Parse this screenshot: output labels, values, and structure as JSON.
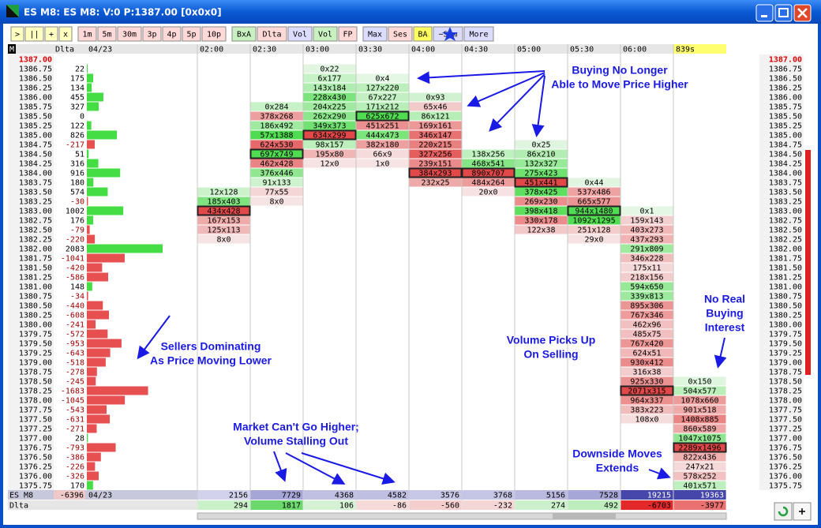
{
  "window_title": "ES M8: ES M8: V:0 P:1387.00 [0x0x0]",
  "toolbar": [
    ">",
    "||",
    "+",
    "x",
    "1m",
    "5m",
    "30m",
    "3p",
    "4p",
    "5p",
    "10p",
    "BxA",
    "Dlta",
    "Vol",
    "Vol",
    "FP",
    "Max",
    "Ses",
    "BA",
    "~Sym",
    "More"
  ],
  "header": {
    "corner": "M",
    "delta": "Dlta",
    "date": "04/23",
    "times": [
      "02:00",
      "02:30",
      "03:00",
      "03:30",
      "04:00",
      "04:30",
      "05:00",
      "05:30",
      "06:00"
    ],
    "current": "839s"
  },
  "prices": [
    "1387.00",
    "1386.75",
    "1386.50",
    "1386.25",
    "1386.00",
    "1385.75",
    "1385.50",
    "1385.25",
    "1385.00",
    "1384.75",
    "1384.50",
    "1384.25",
    "1384.00",
    "1383.75",
    "1383.50",
    "1383.25",
    "1383.00",
    "1382.75",
    "1382.50",
    "1382.25",
    "1382.00",
    "1381.75",
    "1381.50",
    "1381.25",
    "1381.00",
    "1380.75",
    "1380.50",
    "1380.25",
    "1380.00",
    "1379.75",
    "1379.50",
    "1379.25",
    "1379.00",
    "1378.75",
    "1378.50",
    "1378.25",
    "1378.00",
    "1377.75",
    "1377.50",
    "1377.25",
    "1377.00",
    "1376.75",
    "1376.50",
    "1376.25",
    "1376.00",
    "1375.75"
  ],
  "delta": {
    "values": [
      null,
      22,
      175,
      134,
      455,
      327,
      0,
      122,
      826,
      -217,
      51,
      316,
      916,
      180,
      574,
      -30,
      1002,
      176,
      -79,
      -220,
      2083,
      -1041,
      -420,
      -586,
      148,
      -34,
      -440,
      -608,
      -241,
      -572,
      -953,
      -643,
      -518,
      -278,
      -245,
      -1683,
      -1045,
      -543,
      -631,
      -271,
      28,
      -793,
      -386,
      -226,
      -326,
      170
    ]
  },
  "columns": [
    {
      "top_price": "1383.50",
      "cells": [
        "12x128",
        "185x403",
        "434x428",
        "167x153",
        "125x113",
        "8x0"
      ]
    },
    {
      "top_price": "1385.75",
      "cells": [
        "0x284",
        "378x268",
        "186x492",
        "57x1388",
        "624x530",
        "697x749",
        "462x428",
        "376x446",
        "91x133",
        "77x55",
        "8x0"
      ]
    },
    {
      "top_price": "1386.75",
      "cells": [
        "0x22",
        "6x177",
        "143x184",
        "228x430",
        "204x225",
        "262x290",
        "349x373",
        "634x299",
        "98x157",
        "195x80",
        "12x0"
      ]
    },
    {
      "top_price": "1386.50",
      "cells": [
        "0x4",
        "127x220",
        "67x227",
        "171x212",
        "625x672",
        "451x251",
        "444x473",
        "382x180",
        "66x9",
        "1x0"
      ]
    },
    {
      "top_price": "1386.00",
      "cells": [
        "0x93",
        "65x46",
        "86x121",
        "169x161",
        "346x147",
        "220x215",
        "327x256",
        "239x151",
        "384x293",
        "232x25"
      ]
    },
    {
      "top_price": "1384.50",
      "cells": [
        "138x256",
        "468x541",
        "890x707",
        "484x264",
        "20x0"
      ]
    },
    {
      "top_price": "1384.75",
      "cells": [
        "0x25",
        "86x210",
        "132x327",
        "275x423",
        "451x441",
        "378x425",
        "269x230",
        "398x418",
        "330x178",
        "122x38"
      ]
    },
    {
      "top_price": "1383.75",
      "cells": [
        "0x44",
        "537x486",
        "665x577",
        "944x1480",
        "1092x1295",
        "251x128",
        "29x0"
      ]
    },
    {
      "top_price": "1383.00",
      "cells": [
        "0x1",
        "159x143",
        "403x273",
        "437x293",
        "291x809",
        "346x228",
        "175x11",
        "218x156",
        "594x650",
        "339x813",
        "895x306",
        "767x346",
        "462x96",
        "485x75",
        "767x420",
        "624x51",
        "930x412",
        "316x38",
        "925x330",
        "2071x315",
        "964x337",
        "383x223",
        "108x0"
      ]
    },
    {
      "top_price": "1378.50",
      "cells": [
        "0x150",
        "504x577",
        "1078x660",
        "901x518",
        "1408x885",
        "860x589",
        "1047x1075",
        "2289x1496",
        "822x436",
        "247x21",
        "578x252",
        "401x571"
      ]
    }
  ],
  "footer": {
    "symbol": "ES M8",
    "total_delta": -6396,
    "date": "04/23",
    "delta_label": "Dlta",
    "volumes": [
      2156,
      7729,
      4368,
      4582,
      3576,
      3768,
      5156,
      7528,
      19215,
      19363
    ],
    "deltas": [
      294,
      1817,
      106,
      -86,
      -560,
      -232,
      274,
      492,
      -6703,
      -3977
    ]
  },
  "annotations": [
    {
      "lines": [
        "Buying No Longer",
        "Able to Move Price Higher"
      ]
    },
    {
      "lines": [
        "Sellers Dominating",
        "As Price Moving Lower"
      ]
    },
    {
      "lines": [
        "Volume Picks Up",
        "On Selling"
      ]
    },
    {
      "lines": [
        "No Real",
        "Buying",
        "Interest"
      ]
    },
    {
      "lines": [
        "Market Can't Go Higher;",
        "Volume Stalling Out"
      ]
    },
    {
      "lines": [
        "Downside Moves",
        "Extends"
      ]
    }
  ]
}
